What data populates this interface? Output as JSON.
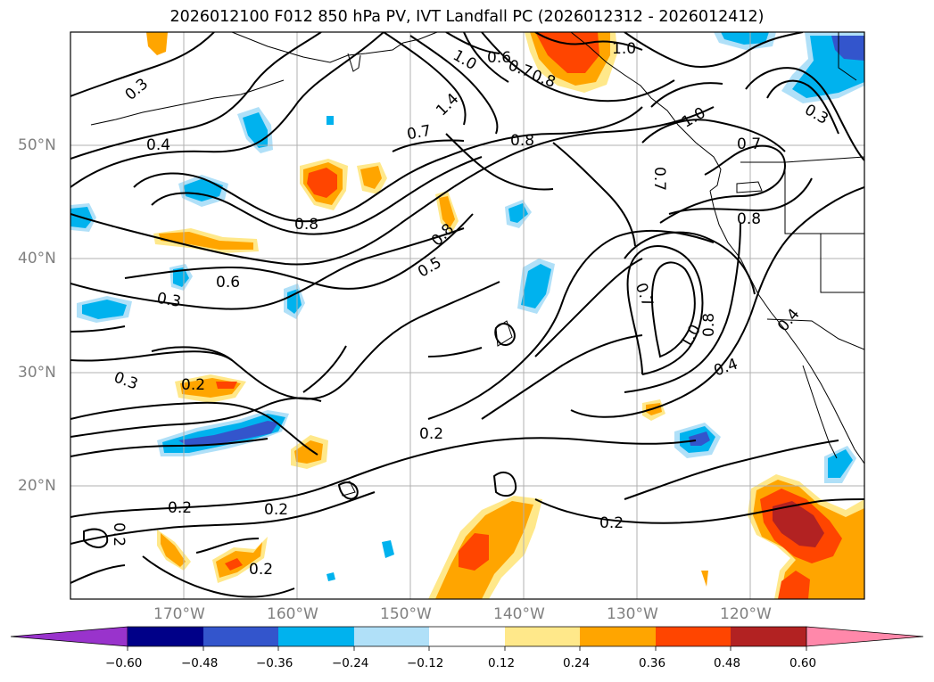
{
  "title": "2026012100 F012 850 hPa PV, IVT Landfall PC (2026012312 - 2026012412)",
  "map": {
    "lon_range": [
      -180,
      -110
    ],
    "lat_range": [
      10,
      60
    ],
    "lat_labels": [
      "50°N",
      "40°N",
      "30°N",
      "20°N"
    ],
    "lon_labels": [
      "170°W",
      "160°W",
      "150°W",
      "140°W",
      "130°W",
      "120°W"
    ],
    "contour_labels": [
      "0.3",
      "0.4",
      "0.6",
      "0.3",
      "0.3",
      "0.2",
      "0.8",
      "0.7",
      "0.8",
      "0.8",
      "0.5",
      "1.4",
      "1.0",
      "0.6",
      "0.7",
      "0.8",
      "1.0",
      "1.0",
      "0.7",
      "0.7",
      "0.8",
      "0.3",
      "0.7",
      "1.0",
      "0.8",
      "0.4",
      "0.4",
      "0.2",
      "0.2",
      "0.2",
      "0.2",
      "0.2",
      "0.2"
    ]
  },
  "colorbar": {
    "ticks": [
      "−0.60",
      "−0.48",
      "−0.36",
      "−0.24",
      "−0.12",
      "0.12",
      "0.24",
      "0.36",
      "0.48",
      "0.60"
    ],
    "colors": [
      "#9933cc",
      "#000088",
      "#3355cc",
      "#00b2ee",
      "#b0e0f8",
      "#ffffff",
      "#ffe88a",
      "#ffa500",
      "#ff4500",
      "#b22222",
      "#ff88aa"
    ]
  },
  "fill_colors": {
    "light_blue": "#b0e0f8",
    "blue": "#00b2ee",
    "royal": "#3355cc",
    "yellow": "#ffe88a",
    "orange": "#ffa500",
    "red_orange": "#ff4500",
    "dark_red": "#b22222"
  }
}
